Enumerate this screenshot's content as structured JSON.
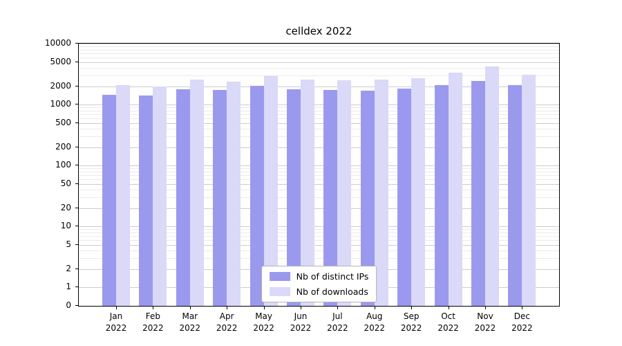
{
  "chart_data": {
    "type": "bar",
    "title": "celldex 2022",
    "yscale": "log",
    "ylim": [
      0,
      10000
    ],
    "yticks": [
      0,
      1,
      2,
      5,
      10,
      20,
      50,
      100,
      200,
      500,
      1000,
      2000,
      5000,
      10000
    ],
    "grid": true,
    "legend_position": "lower center",
    "categories": [
      "Jan\n2022",
      "Feb\n2022",
      "Mar\n2022",
      "Apr\n2022",
      "May\n2022",
      "Jun\n2022",
      "Jul\n2022",
      "Aug\n2022",
      "Sep\n2022",
      "Oct\n2022",
      "Nov\n2022",
      "Dec\n2022"
    ],
    "series": [
      {
        "name": "Nb of distinct IPs",
        "color": "#9b99ee",
        "values": [
          1450,
          1400,
          1800,
          1750,
          2050,
          1800,
          1750,
          1700,
          1850,
          2100,
          2450,
          2100
        ]
      },
      {
        "name": "Nb of downloads",
        "color": "#dad9f7",
        "values": [
          2100,
          2000,
          2600,
          2400,
          2900,
          2550,
          2500,
          2600,
          2700,
          3300,
          4200,
          3100
        ]
      }
    ],
    "colors": {
      "grid_major": "#cccccc",
      "grid_minor": "#eaeaea",
      "axis": "#000000",
      "background": "#ffffff"
    }
  }
}
